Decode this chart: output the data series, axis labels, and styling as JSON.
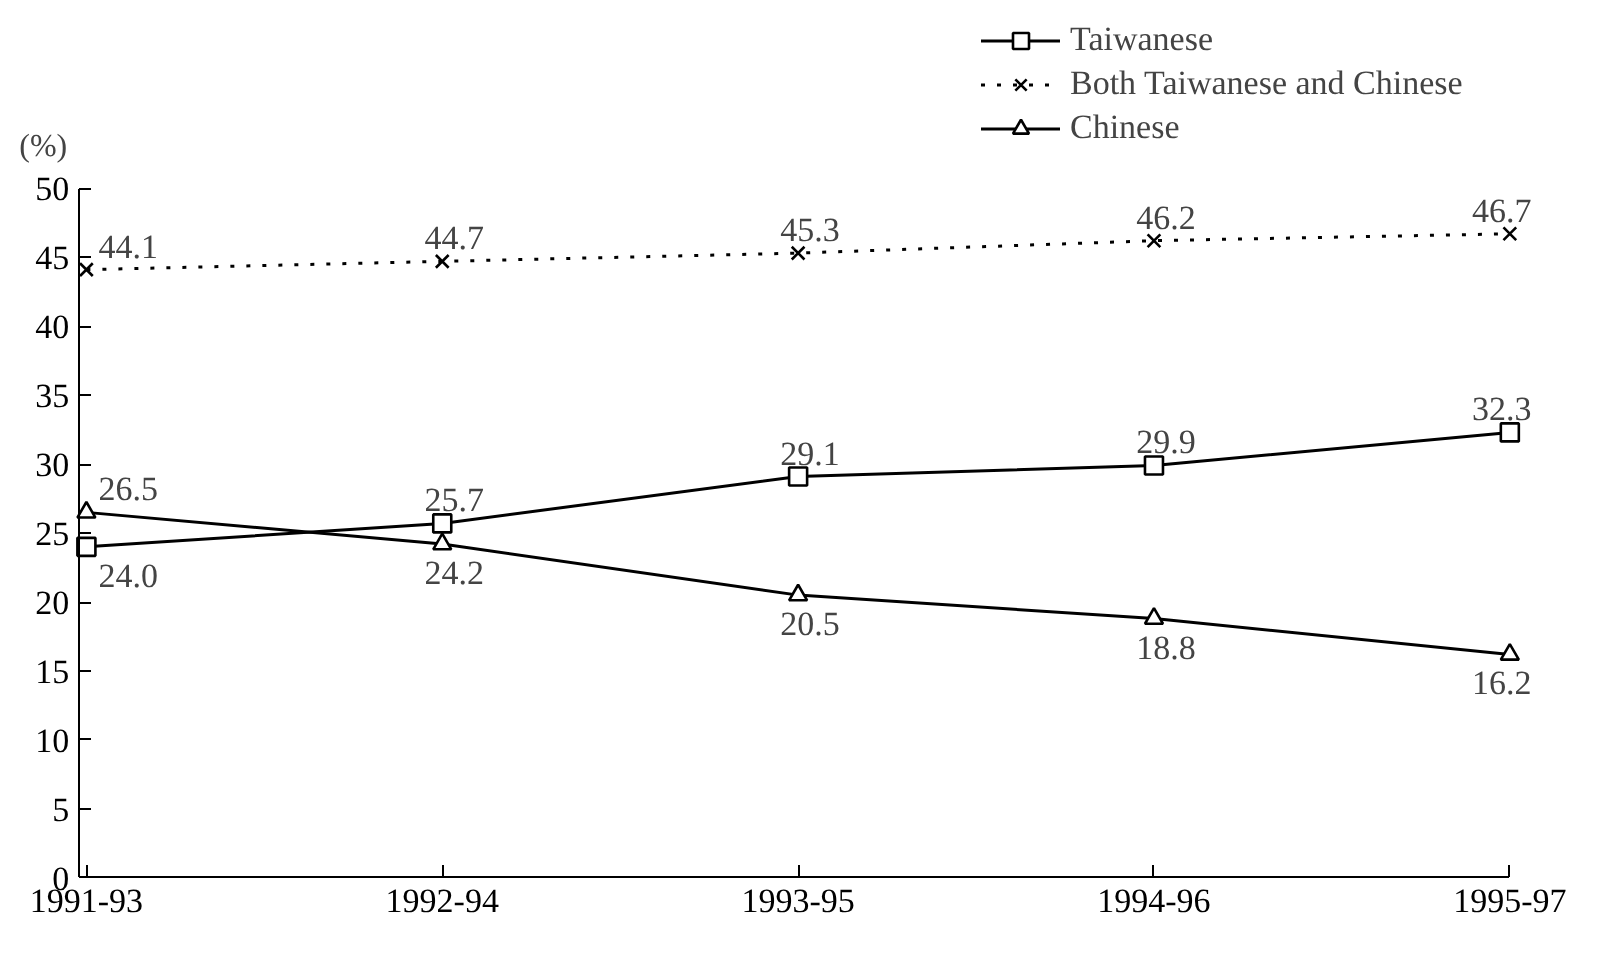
{
  "chart_data": {
    "type": "line",
    "ylabel": "(%)",
    "categories": [
      "1991-93",
      "1992-94",
      "1993-95",
      "1994-96",
      "1995-97"
    ],
    "series": [
      {
        "name": "Taiwanese",
        "color": "#000000",
        "marker": "square",
        "line_style": "solid",
        "values": [
          24.0,
          25.7,
          29.1,
          29.9,
          32.3
        ],
        "value_labels": [
          "24.0",
          "25.7",
          "29.1",
          "29.9",
          "32.3"
        ]
      },
      {
        "name": "Both Taiwanese and Chinese",
        "color": "#000000",
        "marker": "x",
        "line_style": "dotted",
        "values": [
          44.1,
          44.7,
          45.3,
          46.2,
          46.7
        ],
        "value_labels": [
          "44.1",
          "44.7",
          "45.3",
          "46.2",
          "46.7"
        ]
      },
      {
        "name": "Chinese",
        "color": "#000000",
        "marker": "triangle",
        "line_style": "solid",
        "values": [
          26.5,
          24.2,
          20.5,
          18.8,
          16.2
        ],
        "value_labels": [
          "26.5",
          "24.2",
          "20.5",
          "18.8",
          "16.2"
        ]
      }
    ],
    "ylim": [
      0,
      50
    ],
    "yticks": [
      0,
      5,
      10,
      15,
      20,
      25,
      30,
      35,
      40,
      45,
      50
    ],
    "grid": false,
    "legend": "top right"
  }
}
